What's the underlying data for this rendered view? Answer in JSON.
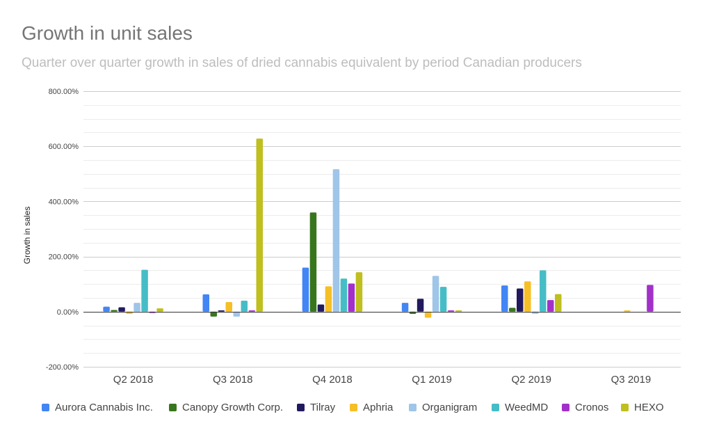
{
  "chart_data": {
    "type": "bar",
    "title": "Growth in unit sales",
    "subtitle": "Quarter over quarter growth in sales of dried cannabis equivalent by period Canadian producers",
    "ylabel": "Growth in sales",
    "ylim": [
      -200,
      800
    ],
    "y_ticks": [
      "-200.00%",
      "0.00%",
      "200.00%",
      "400.00%",
      "600.00%",
      "800.00%"
    ],
    "y_tick_values": [
      -200,
      0,
      200,
      400,
      600,
      800
    ],
    "grid": true,
    "legend_position": "bottom",
    "categories": [
      "Q2 2018",
      "Q3 2018",
      "Q4 2018",
      "Q1 2019",
      "Q2 2019",
      "Q3 2019"
    ],
    "series": [
      {
        "name": "Aurora Cannabis Inc.",
        "color": "#4285f4",
        "values": [
          18,
          63,
          160,
          32,
          95,
          null
        ]
      },
      {
        "name": "Canopy Growth Corp.",
        "color": "#38761d",
        "values": [
          6,
          -18,
          360,
          -8,
          14,
          null
        ]
      },
      {
        "name": "Tilray",
        "color": "#221a5e",
        "values": [
          16,
          5,
          26,
          47,
          84,
          null
        ]
      },
      {
        "name": "Aphria",
        "color": "#f6bf26",
        "values": [
          -8,
          35,
          92,
          -22,
          110,
          5
        ]
      },
      {
        "name": "Organigram",
        "color": "#9fc5e8",
        "values": [
          32,
          -18,
          517,
          130,
          -8,
          null
        ]
      },
      {
        "name": "WeedMD",
        "color": "#46bdc6",
        "values": [
          152,
          40,
          120,
          90,
          150,
          null
        ]
      },
      {
        "name": "Cronos",
        "color": "#a330c9",
        "values": [
          -5,
          5,
          102,
          5,
          42,
          97
        ]
      },
      {
        "name": "HEXO",
        "color": "#bfbf1f",
        "values": [
          12,
          628,
          143,
          5,
          64,
          null
        ]
      }
    ]
  }
}
